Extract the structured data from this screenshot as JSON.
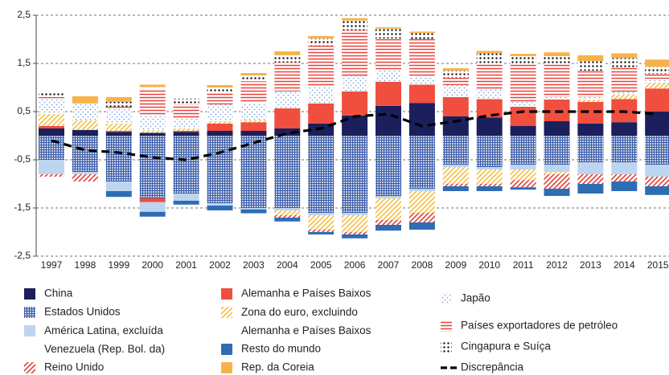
{
  "chart_data": {
    "type": "bar",
    "stacked": true,
    "categories": [
      "1997",
      "1998",
      "1999",
      "2000",
      "2001",
      "2002",
      "2003",
      "2004",
      "2005",
      "2006",
      "2007",
      "2008",
      "2009",
      "2010",
      "2011",
      "2012",
      "2013",
      "2014",
      "2015"
    ],
    "ylim": [
      -2.5,
      2.5
    ],
    "yticks": [
      {
        "value": 2.5,
        "label": "2,5"
      },
      {
        "value": 1.5,
        "label": "1,5"
      },
      {
        "value": 0.5,
        "label": "0,5"
      },
      {
        "value": -0.5,
        "label": "-0,5"
      },
      {
        "value": -1.5,
        "label": "-1,5"
      },
      {
        "value": -2.5,
        "label": "-2,5"
      }
    ],
    "grid": true,
    "legend": "bottom",
    "series": [
      {
        "name": "China",
        "color": "#1b1f5c",
        "pattern": "solid",
        "values": [
          0.15,
          0.12,
          0.08,
          0.06,
          0.08,
          0.1,
          0.1,
          0.15,
          0.25,
          0.42,
          0.62,
          0.68,
          0.4,
          0.38,
          0.2,
          0.3,
          0.25,
          0.28,
          0.5
        ]
      },
      {
        "name": "Estados Unidos",
        "color": "#3b5ca8",
        "pattern": "grid",
        "values": [
          -0.5,
          -0.75,
          -0.95,
          -1.3,
          -1.2,
          -1.4,
          -1.5,
          -1.5,
          -1.6,
          -1.6,
          -1.25,
          -1.1,
          -0.6,
          -0.65,
          -0.6,
          -0.6,
          -0.55,
          -0.55,
          -0.6
        ]
      },
      {
        "name": "América Latina, excluída\nVenezuela (Rep. Bol. da)",
        "color": "#bdd5ef",
        "pattern": "solid",
        "values": [
          -0.3,
          -0.05,
          -0.2,
          -0.2,
          -0.15,
          -0.05,
          -0.03,
          -0.05,
          -0.05,
          -0.05,
          -0.05,
          -0.05,
          -0.05,
          -0.05,
          -0.1,
          -0.15,
          -0.25,
          -0.25,
          -0.25
        ]
      },
      {
        "name": "Reino Unido",
        "color": "#e0413a",
        "pattern": "hatch",
        "values": [
          -0.05,
          -0.15,
          0,
          0,
          0,
          0,
          0,
          -0.05,
          -0.05,
          -0.05,
          -0.1,
          -0.2,
          -0.05,
          -0.05,
          -0.15,
          -0.3,
          -0.2,
          -0.15,
          -0.2
        ]
      },
      {
        "name": "Alemanha e Países Baixos",
        "color": "#f04e3e",
        "pattern": "solid",
        "values": [
          0.05,
          0,
          0.02,
          -0.08,
          0.02,
          0.15,
          0.18,
          0.42,
          0.42,
          0.5,
          0.5,
          0.38,
          0.4,
          0.38,
          0.4,
          0.45,
          0.45,
          0.48,
          0.48
        ]
      },
      {
        "name": "Zona do euro, excluindo\nAlemanha e Países Baixos",
        "color": "#f5bf45",
        "pattern": "hatch",
        "values": [
          0.25,
          0.2,
          0.15,
          0.05,
          0.05,
          0.05,
          0.05,
          -0.1,
          -0.3,
          -0.35,
          -0.45,
          -0.45,
          -0.35,
          -0.3,
          -0.22,
          -0.05,
          0.05,
          0.1,
          0.12
        ]
      },
      {
        "name": "Resto do mundo",
        "color": "#2e6db4",
        "pattern": "solid",
        "values": [
          0,
          0,
          -0.12,
          -0.1,
          -0.08,
          -0.1,
          -0.08,
          -0.08,
          -0.05,
          -0.08,
          -0.12,
          -0.15,
          -0.1,
          -0.1,
          -0.05,
          -0.15,
          -0.2,
          -0.2,
          -0.18
        ]
      },
      {
        "name": "Rep. da Coreia",
        "color": "#f9b24a",
        "pattern": "solid",
        "values": [
          0,
          0.15,
          0.1,
          0.05,
          0,
          0.05,
          0.05,
          0.08,
          0.05,
          0.05,
          0.03,
          0.03,
          0.05,
          0.05,
          0.05,
          0.08,
          0.12,
          0.1,
          0.15
        ]
      },
      {
        "name": "Japão",
        "color": "#7aa7dc",
        "pattern": "dots",
        "values": [
          0.3,
          0.35,
          0.3,
          0.3,
          0.2,
          0.35,
          0.35,
          0.35,
          0.35,
          0.32,
          0.25,
          0.15,
          0.25,
          0.2,
          0.1,
          0.05,
          0.05,
          0.05,
          0.08
        ]
      },
      {
        "name": "Países exportadores de petróleo",
        "color": "#e8413a",
        "pattern": "lines",
        "values": [
          0.05,
          0,
          0.05,
          0.55,
          0.3,
          0.25,
          0.45,
          0.6,
          0.85,
          0.95,
          0.65,
          0.8,
          0.15,
          0.55,
          0.8,
          0.7,
          0.55,
          0.5,
          0.1
        ]
      },
      {
        "name": "Cingapura e Suíça",
        "color": "#111111",
        "pattern": "bigdots",
        "values": [
          0.12,
          0,
          0.1,
          0.05,
          0.12,
          0.1,
          0.12,
          0.15,
          0.15,
          0.2,
          0.2,
          0.12,
          0.15,
          0.2,
          0.15,
          0.15,
          0.2,
          0.2,
          0.15
        ]
      },
      {
        "name": "Discrepância",
        "color": "#000000",
        "type": "line",
        "dashed": true,
        "values": [
          -0.1,
          -0.3,
          -0.35,
          -0.45,
          -0.5,
          -0.35,
          -0.15,
          0.05,
          0.15,
          0.4,
          0.45,
          0.2,
          0.3,
          0.42,
          0.5,
          0.5,
          0.5,
          0.5,
          0.45
        ]
      }
    ]
  }
}
